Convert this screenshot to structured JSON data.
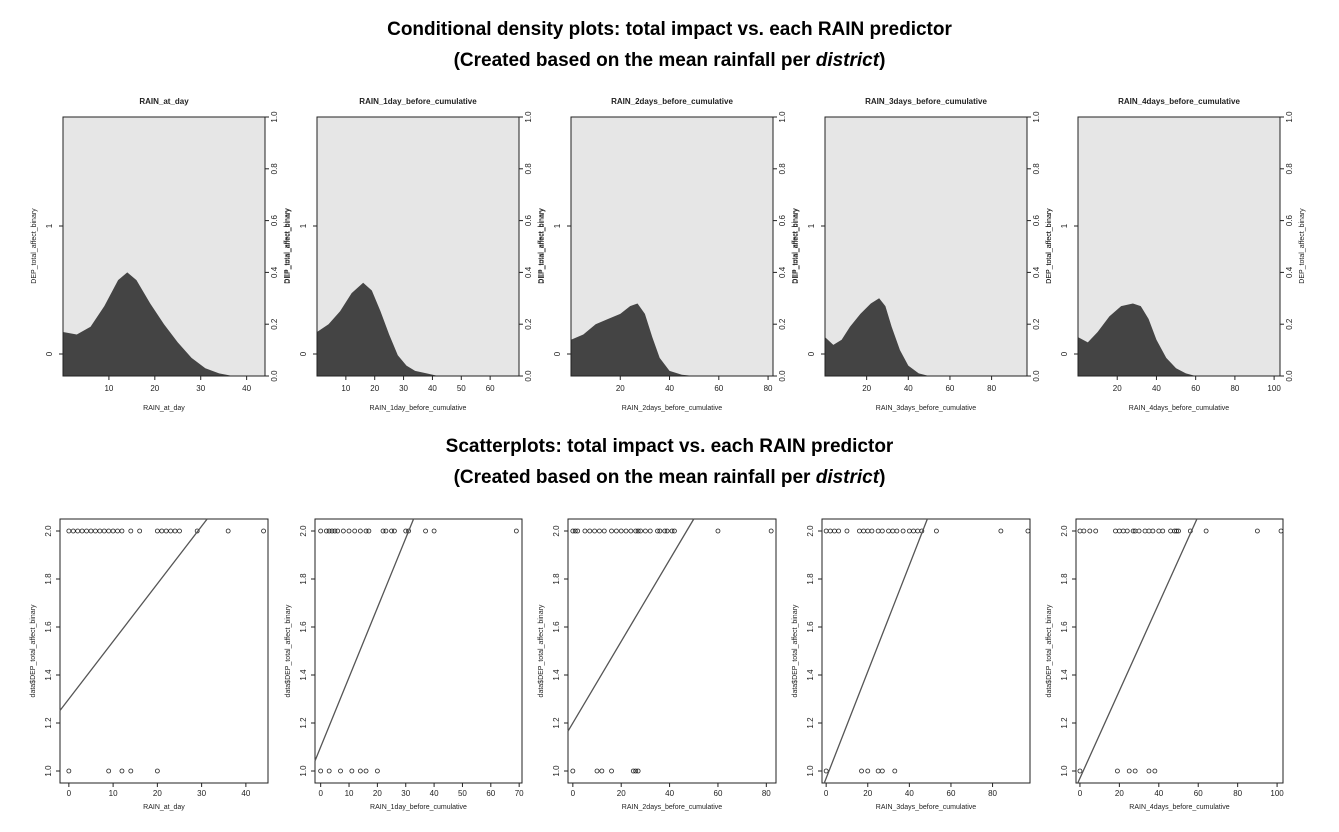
{
  "header_top": {
    "line1": "Conditional density plots: total impact vs. each RAIN predictor",
    "line2_prefix": "(Created based on the mean rainfall per ",
    "line2_em": "district",
    "line2_suffix": ")"
  },
  "header_bottom": {
    "line1": "Scatterplots: total impact vs. each RAIN predictor",
    "line2_prefix": "(Created based on the mean rainfall per ",
    "line2_em": "district",
    "line2_suffix": ")"
  },
  "colors": {
    "density_fill": "#444444",
    "background": "#e6e6e6",
    "line": "#555555"
  },
  "chart_data": [
    {
      "type": "area",
      "title": "RAIN_at_day",
      "xlabel": "RAIN_at_day",
      "ylabel": "DEP_total_affect_binary",
      "xlim": [
        0,
        44
      ],
      "xticks": [
        10,
        20,
        30,
        40
      ],
      "left_ticks": [
        "0",
        "1"
      ],
      "right_ticks": [
        "0.0",
        "0.2",
        "0.4",
        "0.6",
        "0.8",
        "1.0"
      ],
      "x": [
        0,
        3,
        6,
        9,
        12,
        14,
        16,
        19,
        22,
        25,
        28,
        31,
        34,
        37,
        40
      ],
      "y": [
        0.17,
        0.16,
        0.19,
        0.27,
        0.37,
        0.4,
        0.37,
        0.28,
        0.2,
        0.13,
        0.07,
        0.03,
        0.01,
        0,
        0
      ]
    },
    {
      "type": "area",
      "title": "RAIN_1day_before_cumulative",
      "xlabel": "RAIN_1day_before_cumulative",
      "ylabel": "DEP_total_affect_binary",
      "xlim": [
        0,
        70
      ],
      "xticks": [
        10,
        20,
        30,
        40,
        50,
        60
      ],
      "left_ticks": [
        "0",
        "1"
      ],
      "right_ticks": [
        "0.0",
        "0.2",
        "0.4",
        "0.6",
        "0.8",
        "1.0"
      ],
      "x": [
        0,
        4,
        8,
        12,
        16,
        19,
        22,
        25,
        28,
        31,
        34,
        38,
        42,
        50,
        70
      ],
      "y": [
        0.17,
        0.2,
        0.25,
        0.32,
        0.36,
        0.33,
        0.25,
        0.16,
        0.08,
        0.04,
        0.02,
        0.01,
        0,
        0,
        0
      ]
    },
    {
      "type": "area",
      "title": "RAIN_2days_before_cumulative",
      "xlabel": "RAIN_2days_before_cumulative",
      "ylabel": "DEP_total_affect_binary",
      "xlim": [
        0,
        82
      ],
      "xticks": [
        20,
        40,
        60,
        80
      ],
      "left_ticks": [
        "0",
        "1"
      ],
      "right_ticks": [
        "0.0",
        "0.2",
        "0.4",
        "0.6",
        "0.8",
        "1.0"
      ],
      "x": [
        0,
        5,
        10,
        15,
        20,
        24,
        27,
        30,
        33,
        36,
        40,
        45,
        50,
        60,
        82
      ],
      "y": [
        0.14,
        0.16,
        0.2,
        0.22,
        0.24,
        0.27,
        0.28,
        0.24,
        0.15,
        0.07,
        0.02,
        0.005,
        0,
        0,
        0
      ]
    },
    {
      "type": "area",
      "title": "RAIN_3days_before_cumulative",
      "xlabel": "RAIN_3days_before_cumulative",
      "ylabel": "DEP_total_affect_binary",
      "xlim": [
        0,
        97
      ],
      "xticks": [
        20,
        40,
        60,
        80
      ],
      "left_ticks": [
        "0",
        "1"
      ],
      "right_ticks": [
        "0.0",
        "0.2",
        "0.4",
        "0.6",
        "0.8",
        "1.0"
      ],
      "x": [
        0,
        4,
        8,
        12,
        17,
        22,
        26,
        29,
        32,
        36,
        40,
        45,
        50,
        60,
        97
      ],
      "y": [
        0.15,
        0.12,
        0.14,
        0.19,
        0.24,
        0.28,
        0.3,
        0.27,
        0.19,
        0.1,
        0.04,
        0.01,
        0,
        0,
        0
      ]
    },
    {
      "type": "area",
      "title": "RAIN_4days_before_cumulative",
      "xlabel": "RAIN_4days_before_cumulative",
      "ylabel": "DEP_total_affect_binary",
      "xlim": [
        0,
        103
      ],
      "xticks": [
        20,
        40,
        60,
        80,
        100
      ],
      "left_ticks": [
        "0",
        "1"
      ],
      "right_ticks": [
        "0.0",
        "0.2",
        "0.4",
        "0.6",
        "0.8",
        "1.0"
      ],
      "x": [
        0,
        5,
        10,
        16,
        22,
        28,
        32,
        36,
        40,
        45,
        50,
        55,
        60,
        70,
        103
      ],
      "y": [
        0.15,
        0.13,
        0.17,
        0.23,
        0.27,
        0.28,
        0.27,
        0.22,
        0.14,
        0.07,
        0.03,
        0.01,
        0,
        0,
        0
      ]
    },
    {
      "type": "scatter",
      "xlabel": "RAIN_at_day",
      "ylabel": "data$DEP_total_affect_binary",
      "xlim": [
        -2,
        45
      ],
      "ylim": [
        0.95,
        2.05
      ],
      "xticks": [
        0,
        10,
        20,
        30,
        40
      ],
      "yticks": [
        "1.0",
        "1.2",
        "1.4",
        "1.6",
        "1.8",
        "2.0"
      ],
      "points_y2": [
        0,
        1,
        2,
        3,
        4,
        5,
        6,
        7,
        8,
        9,
        10,
        11,
        12,
        14,
        16,
        20,
        21,
        22,
        23,
        24,
        25,
        29,
        36,
        44
      ],
      "points_y1": [
        0,
        9,
        12,
        14,
        20
      ],
      "line": {
        "intercept": 1.3,
        "slope": 0.024
      }
    },
    {
      "type": "scatter",
      "xlabel": "RAIN_1day_before_cumulative",
      "ylabel": "data$DEP_total_affect_binary",
      "xlim": [
        -2,
        71
      ],
      "ylim": [
        0.95,
        2.05
      ],
      "xticks": [
        0,
        10,
        20,
        30,
        40,
        50,
        60,
        70
      ],
      "yticks": [
        "1.0",
        "1.2",
        "1.4",
        "1.6",
        "1.8",
        "2.0"
      ],
      "points_y2": [
        0,
        2,
        3,
        4,
        5,
        6,
        8,
        10,
        12,
        14,
        16,
        17,
        22,
        23,
        25,
        26,
        30,
        31,
        37,
        40,
        69
      ],
      "points_y1": [
        0,
        3,
        7,
        11,
        14,
        16,
        20
      ],
      "line": {
        "intercept": 1.1,
        "slope": 0.029
      }
    },
    {
      "type": "scatter",
      "xlabel": "RAIN_2days_before_cumulative",
      "ylabel": "data$DEP_total_affect_binary",
      "xlim": [
        -2,
        84
      ],
      "ylim": [
        0.95,
        2.05
      ],
      "xticks": [
        0,
        20,
        40,
        60,
        80
      ],
      "yticks": [
        "1.0",
        "1.2",
        "1.4",
        "1.6",
        "1.8",
        "2.0"
      ],
      "points_y2": [
        0,
        1,
        2,
        5,
        7,
        9,
        11,
        13,
        16,
        18,
        20,
        22,
        24,
        26,
        27,
        28,
        30,
        32,
        35,
        36,
        38,
        39,
        41,
        42,
        60,
        82
      ],
      "points_y1": [
        0,
        10,
        12,
        16,
        25,
        26,
        27
      ],
      "line": {
        "intercept": 1.2,
        "slope": 0.017
      }
    },
    {
      "type": "scatter",
      "xlabel": "RAIN_3days_before_cumulative",
      "ylabel": "data$DEP_total_affect_binary",
      "xlim": [
        -2,
        98
      ],
      "ylim": [
        0.95,
        2.05
      ],
      "xticks": [
        0,
        20,
        40,
        60,
        80
      ],
      "yticks": [
        "1.0",
        "1.2",
        "1.4",
        "1.6",
        "1.8",
        "2.0"
      ],
      "points_y2": [
        0,
        2,
        4,
        6,
        10,
        16,
        18,
        20,
        22,
        25,
        27,
        30,
        32,
        34,
        37,
        40,
        42,
        44,
        46,
        53,
        84,
        97
      ],
      "points_y1": [
        0,
        17,
        20,
        25,
        27,
        33
      ],
      "line": {
        "intercept": 0.97,
        "slope": 0.0222
      }
    },
    {
      "type": "scatter",
      "xlabel": "RAIN_4days_before_cumulative",
      "ylabel": "data$DEP_total_affect_binary",
      "xlim": [
        -2,
        103
      ],
      "ylim": [
        0.95,
        2.05
      ],
      "xticks": [
        0,
        20,
        40,
        60,
        80,
        100
      ],
      "yticks": [
        "1.0",
        "1.2",
        "1.4",
        "1.6",
        "1.8",
        "2.0"
      ],
      "points_y2": [
        0,
        2,
        5,
        8,
        18,
        20,
        22,
        24,
        27,
        28,
        30,
        33,
        35,
        37,
        40,
        42,
        46,
        48,
        49,
        50,
        56,
        64,
        90,
        102
      ],
      "points_y1": [
        0,
        19,
        25,
        28,
        35,
        38
      ],
      "line": {
        "intercept": 0.97,
        "slope": 0.0182
      }
    }
  ]
}
